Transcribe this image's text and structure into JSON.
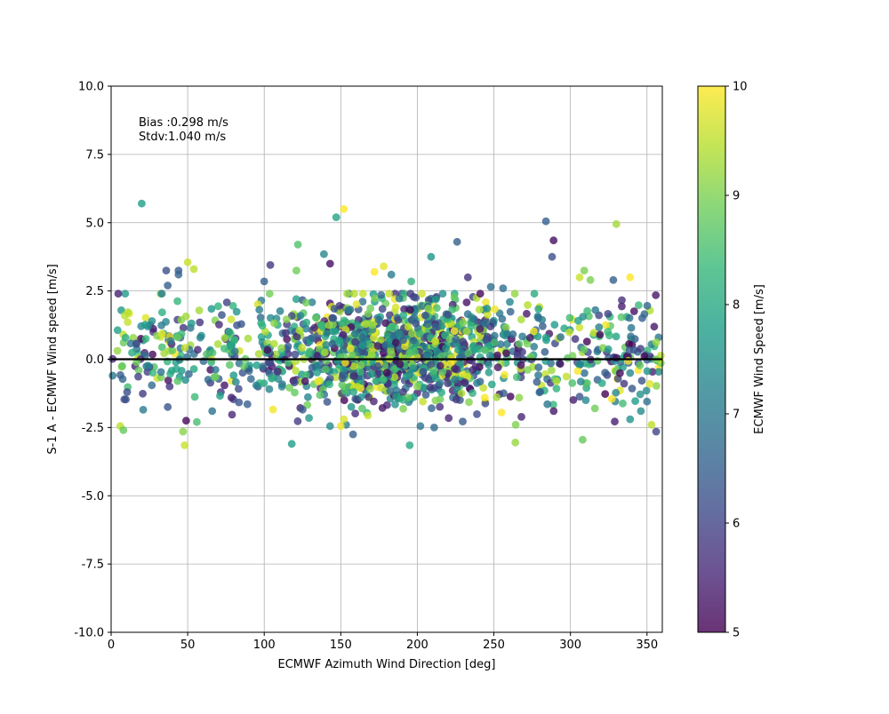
{
  "chart_data": {
    "type": "scatter",
    "xlabel": "ECMWF Azimuth Wind Direction [deg]",
    "ylabel": "S-1 A - ECMWF Wind speed [m/s]",
    "xlim": [
      0,
      360
    ],
    "ylim": [
      -10,
      10
    ],
    "xticks": [
      0,
      50,
      100,
      150,
      200,
      250,
      300,
      350
    ],
    "yticks": [
      -10.0,
      -7.5,
      -5.0,
      -2.5,
      0.0,
      2.5,
      5.0,
      7.5,
      10.0
    ],
    "grid": true,
    "reference_line_y": 0,
    "annotations": [
      "Bias :0.298 m/s",
      "Stdv:1.040 m/s"
    ],
    "colorbar": {
      "label": "ECMWF Wind Speed [m/s]",
      "range": [
        5,
        10
      ],
      "ticks": [
        5,
        6,
        7,
        8,
        9,
        10
      ],
      "colormap": "viridis"
    },
    "marker_alpha": 0.8,
    "highlighted_points": [
      {
        "x": 20,
        "y": 5.7,
        "c": 7.8
      },
      {
        "x": 147,
        "y": 5.2,
        "c": 7.9
      },
      {
        "x": 152,
        "y": 5.5,
        "c": 10.0
      },
      {
        "x": 284,
        "y": 5.05,
        "c": 6.5
      },
      {
        "x": 330,
        "y": 4.95,
        "c": 9.3
      },
      {
        "x": 289,
        "y": 4.35,
        "c": 5.2
      },
      {
        "x": 226,
        "y": 4.3,
        "c": 6.5
      },
      {
        "x": 122,
        "y": 4.2,
        "c": 8.6
      },
      {
        "x": 139,
        "y": 3.85,
        "c": 7.3
      },
      {
        "x": 209,
        "y": 3.75,
        "c": 7.6
      },
      {
        "x": 288,
        "y": 3.75,
        "c": 6.2
      },
      {
        "x": 50,
        "y": 3.55,
        "c": 9.6
      },
      {
        "x": 143,
        "y": 3.5,
        "c": 5.2
      },
      {
        "x": 104,
        "y": 3.45,
        "c": 5.8
      },
      {
        "x": 178,
        "y": 3.4,
        "c": 9.8
      },
      {
        "x": 54,
        "y": 3.3,
        "c": 9.5
      },
      {
        "x": 36,
        "y": 3.25,
        "c": 6.2
      },
      {
        "x": 44,
        "y": 3.25,
        "c": 6.4
      },
      {
        "x": 172,
        "y": 3.2,
        "c": 10.0
      },
      {
        "x": 309,
        "y": 3.25,
        "c": 9.0
      },
      {
        "x": 121,
        "y": 3.25,
        "c": 8.9
      },
      {
        "x": 44,
        "y": 3.1,
        "c": 6.6
      },
      {
        "x": 183,
        "y": 3.1,
        "c": 7.1
      },
      {
        "x": 233,
        "y": 3.0,
        "c": 5.7
      },
      {
        "x": 339,
        "y": 3.0,
        "c": 10.0
      },
      {
        "x": 196,
        "y": 2.85,
        "c": 8.2
      },
      {
        "x": 100,
        "y": 2.85,
        "c": 6.5
      },
      {
        "x": 37,
        "y": 2.7,
        "c": 6.5
      },
      {
        "x": 248,
        "y": 2.65,
        "c": 6.8
      },
      {
        "x": 256,
        "y": 2.6,
        "c": 6.8
      },
      {
        "x": 328,
        "y": 2.9,
        "c": 6.5
      },
      {
        "x": 306,
        "y": 3.0,
        "c": 9.6
      },
      {
        "x": 313,
        "y": 2.9,
        "c": 9.0
      },
      {
        "x": 118,
        "y": -3.1,
        "c": 7.8
      },
      {
        "x": 195,
        "y": -3.15,
        "c": 8.0
      },
      {
        "x": 264,
        "y": -3.05,
        "c": 9.2
      },
      {
        "x": 48,
        "y": -3.15,
        "c": 9.6
      },
      {
        "x": 308,
        "y": -2.95,
        "c": 8.8
      },
      {
        "x": 47,
        "y": -2.65,
        "c": 9.1
      },
      {
        "x": 6,
        "y": -2.45,
        "c": 9.5
      },
      {
        "x": 8,
        "y": -2.6,
        "c": 8.8
      },
      {
        "x": 158,
        "y": -2.75,
        "c": 6.5
      },
      {
        "x": 356,
        "y": -2.65,
        "c": 6.0
      },
      {
        "x": 211,
        "y": -2.5,
        "c": 6.7
      },
      {
        "x": 202,
        "y": -2.45,
        "c": 6.9
      },
      {
        "x": 143,
        "y": -2.45,
        "c": 7.4
      },
      {
        "x": 150,
        "y": -2.45,
        "c": 9.9
      },
      {
        "x": 152,
        "y": -2.2,
        "c": 9.7
      },
      {
        "x": 353,
        "y": -2.4,
        "c": 9.5
      },
      {
        "x": 339,
        "y": -2.2,
        "c": 7.6
      },
      {
        "x": 346,
        "y": -1.9,
        "c": 7.4
      },
      {
        "x": 49,
        "y": -2.25,
        "c": 5.1
      },
      {
        "x": 56,
        "y": -2.3,
        "c": 8.5
      },
      {
        "x": 255,
        "y": -1.95,
        "c": 10.0
      },
      {
        "x": 310,
        "y": -1.5,
        "c": 7.3
      },
      {
        "x": 316,
        "y": -1.8,
        "c": 8.9
      },
      {
        "x": 66,
        "y": -1.9,
        "c": 6.9
      },
      {
        "x": 37,
        "y": -1.75,
        "c": 6.3
      },
      {
        "x": 89,
        "y": -1.65,
        "c": 6.5
      },
      {
        "x": 327,
        "y": -1.45,
        "c": 10.0
      },
      {
        "x": 244,
        "y": -1.4,
        "c": 10.0
      },
      {
        "x": 350,
        "y": -1.55,
        "c": 6.8
      }
    ]
  }
}
